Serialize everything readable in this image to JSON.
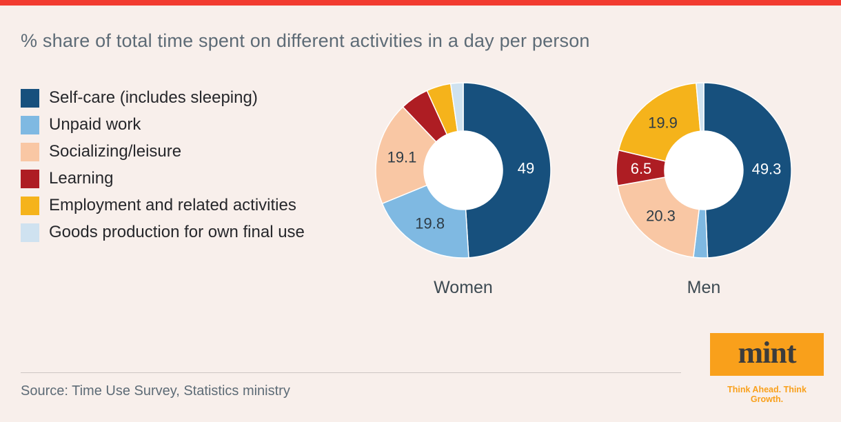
{
  "page": {
    "title": "% share of total time spent on different activities in a day per person",
    "source": "Source: Time Use Survey, Statistics ministry",
    "background_color": "#f8efeb"
  },
  "brand": {
    "logo_text": "mint",
    "tagline": "Think Ahead. Think Growth.",
    "topbar_color": "#f23b30",
    "logo_bg_color": "#f9a01b",
    "tagline_color": "#f9a01b",
    "logo_text_color": "#3c3c3c"
  },
  "chart_data": {
    "type": "pie",
    "variant": "donut",
    "legend_position": "left",
    "hole_color": "#ffffff",
    "categories": [
      "Self-care (includes sleeping)",
      "Unpaid work",
      "Socializing/leisure",
      "Learning",
      "Employment and related activities",
      "Goods production for own final use"
    ],
    "colors": [
      "#17507d",
      "#7fb9e2",
      "#f9c7a4",
      "#ae1d23",
      "#f5b31b",
      "#cfe2f0"
    ],
    "series": [
      {
        "name": "Women",
        "values": [
          49,
          19.8,
          19.1,
          5.3,
          4.5,
          2.3
        ],
        "labels": [
          "49",
          "19.8",
          "19.1",
          "",
          "",
          ""
        ]
      },
      {
        "name": "Men",
        "values": [
          49.3,
          2.6,
          20.3,
          6.5,
          19.9,
          1.4
        ],
        "labels": [
          "49.3",
          "",
          "20.3",
          "6.5",
          "19.9",
          ""
        ]
      }
    ]
  }
}
